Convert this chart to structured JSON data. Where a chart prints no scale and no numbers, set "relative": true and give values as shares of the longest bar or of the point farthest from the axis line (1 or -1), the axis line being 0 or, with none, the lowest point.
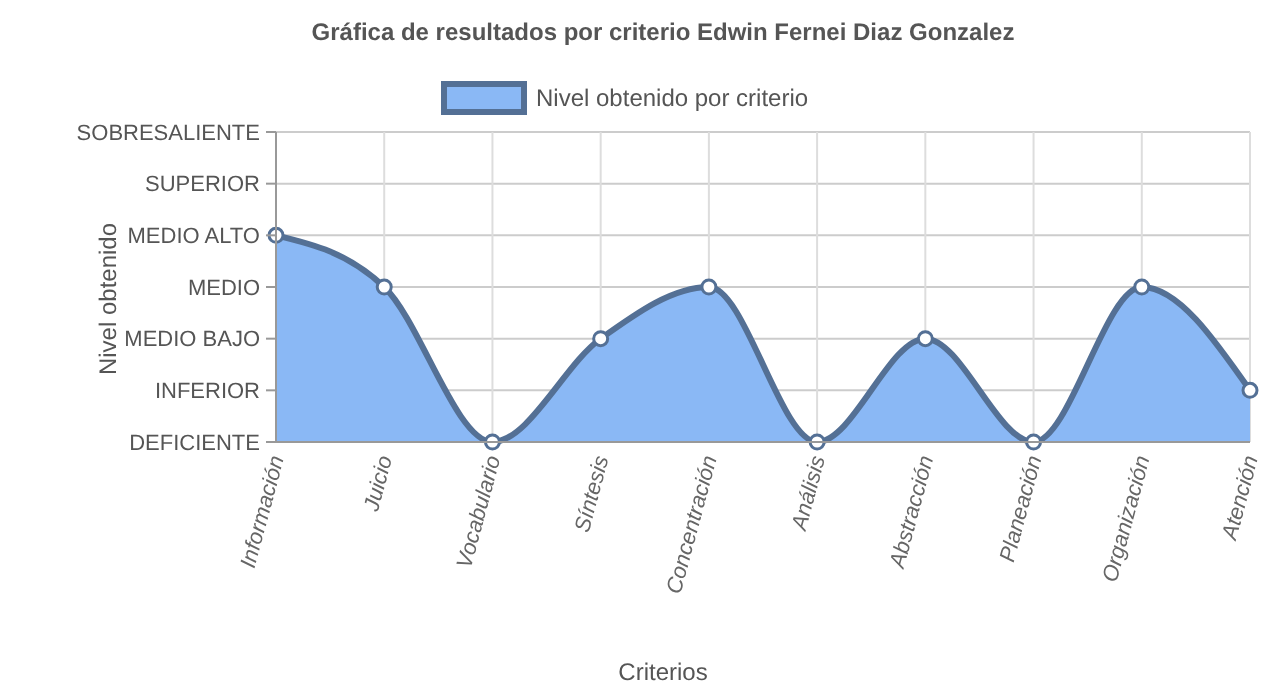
{
  "chart_data": {
    "type": "area",
    "title": "Gráfica de resultados por criterio Edwin Fernei Diaz Gonzalez",
    "xlabel": "Criterios",
    "ylabel": "Nivel obtenido",
    "categories": [
      "Información",
      "Juicio",
      "Vocabulario",
      "Síntesis",
      "Concentración",
      "Análisis",
      "Abstracción",
      "Planeación",
      "Organización",
      "Atención"
    ],
    "y_categories": [
      "SOBRESALIENTE",
      "SUPERIOR",
      "MEDIO ALTO",
      "MEDIO",
      "MEDIO BAJO",
      "INFERIOR",
      "DEFICIENTE"
    ],
    "series": [
      {
        "name": "Nivel obtenido por criterio",
        "color": "#8ab8f5",
        "values": [
          1,
          0.75,
          0,
          0.5,
          0.75,
          0,
          0.5,
          0,
          0.75,
          0.25
        ]
      }
    ],
    "relative": true,
    "grid": true,
    "legend": "top",
    "marker": "circle"
  }
}
